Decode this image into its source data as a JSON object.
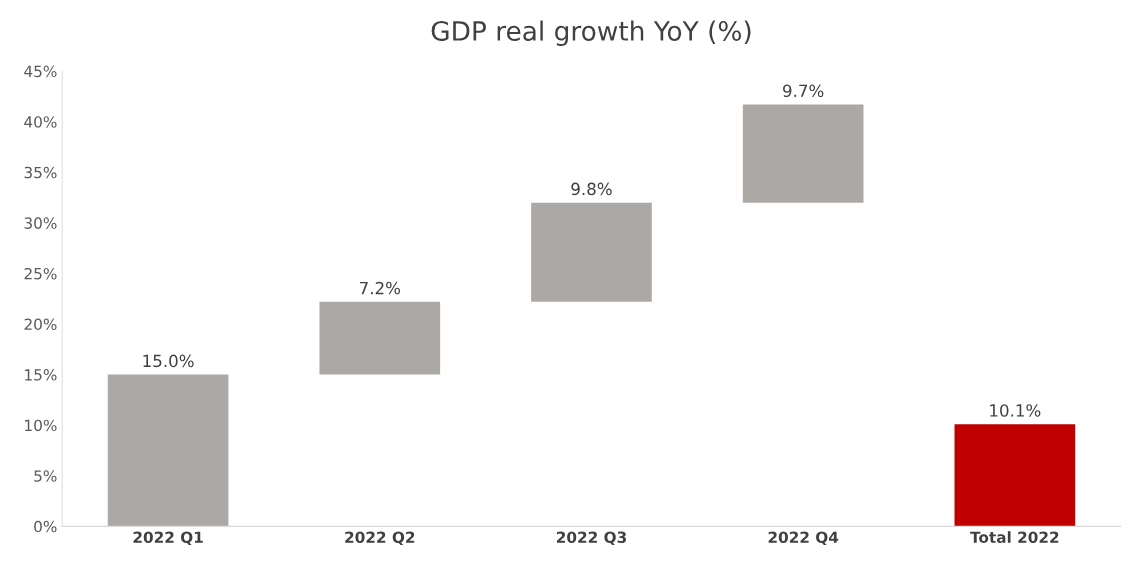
{
  "chart_data": {
    "type": "bar",
    "title": "GDP real growth YoY (%)",
    "categories": [
      "2022 Q1",
      "2022 Q2",
      "2022 Q3",
      "2022 Q4",
      "Total 2022"
    ],
    "values": [
      15.0,
      7.2,
      9.8,
      9.7,
      10.1
    ],
    "base": [
      0,
      15.0,
      22.2,
      32.0,
      0
    ],
    "colors": [
      "#aca8a6",
      "#aca8a6",
      "#aca8a6",
      "#aca8a6",
      "#c00000"
    ],
    "value_labels": [
      "15.0%",
      "7.2%",
      "9.8%",
      "9.7%",
      "10.1%"
    ],
    "ylim": [
      0,
      45
    ],
    "yticks": [
      {
        "value": 0,
        "label": "0%"
      },
      {
        "value": 5,
        "label": "5%"
      },
      {
        "value": 10,
        "label": "10%"
      },
      {
        "value": 15,
        "label": "15%"
      },
      {
        "value": 20,
        "label": "20%"
      },
      {
        "value": 25,
        "label": "25%"
      },
      {
        "value": 30,
        "label": "30%"
      },
      {
        "value": 35,
        "label": "35%"
      },
      {
        "value": 40,
        "label": "40%"
      },
      {
        "value": 45,
        "label": "45%"
      }
    ],
    "grid": false
  }
}
